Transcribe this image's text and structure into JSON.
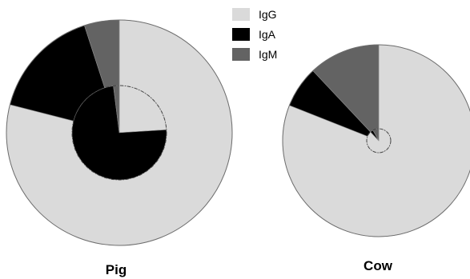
{
  "legend": {
    "items": [
      {
        "label": "IgG",
        "color": "#dadada"
      },
      {
        "label": "IgA",
        "color": "#000000"
      },
      {
        "label": "IgM",
        "color": "#636363"
      }
    ]
  },
  "chart_data": [
    {
      "type": "pie",
      "title": "Pig",
      "categories": [
        "IgG",
        "IgA",
        "IgM"
      ],
      "series": [
        {
          "values": [
            79,
            16,
            5
          ]
        },
        {
          "values": [
            24,
            74,
            2
          ]
        }
      ],
      "legend_position": "top-center"
    },
    {
      "type": "pie",
      "title": "Cow",
      "categories": [
        "IgG",
        "IgA",
        "IgM"
      ],
      "series": [
        {
          "values": [
            81,
            7,
            12
          ]
        },
        {
          "values": [
            88,
            4,
            8
          ]
        }
      ],
      "legend_position": "top-center"
    }
  ]
}
